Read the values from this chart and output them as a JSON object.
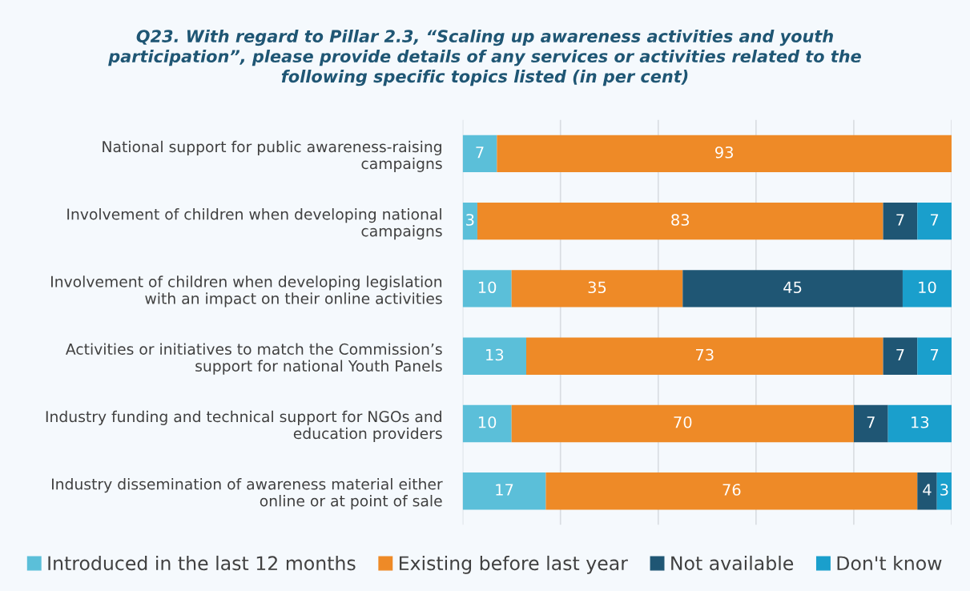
{
  "chart_data": {
    "type": "bar",
    "orientation": "horizontal",
    "stacked": true,
    "title": "Q23. With regard to Pillar 2.3, “Scaling up awareness activities and youth\nparticipation”, please provide details of any services or activities related to the\nfollowing specific topics listed (in per cent)",
    "categories": [
      "National support for public awareness-raising\ncampaigns",
      "Involvement of children when developing national\ncampaigns",
      "Involvement of children when developing legislation\nwith an impact on their online activities",
      "Activities or initiatives to match the Commission’s\nsupport for national Youth Panels",
      "Industry funding and technical support for NGOs and\neducation providers",
      "Industry dissemination of awareness material either\nonline or at point of sale"
    ],
    "series": [
      {
        "name": "Introduced in the last 12 months",
        "color": "#5bbfd9",
        "values": [
          7,
          3,
          10,
          13,
          10,
          17
        ]
      },
      {
        "name": "Existing before last year",
        "color": "#ee8a27",
        "values": [
          93,
          83,
          35,
          73,
          70,
          76
        ]
      },
      {
        "name": "Not available",
        "color": "#1f5674",
        "values": [
          null,
          7,
          45,
          7,
          7,
          4
        ]
      },
      {
        "name": "Don't know",
        "color": "#1a9fcc",
        "values": [
          null,
          7,
          10,
          7,
          13,
          3
        ]
      }
    ],
    "xlim": [
      0,
      100
    ],
    "xticks": [
      {
        "value": 0,
        "label": null
      },
      {
        "value": 20,
        "label": null
      },
      {
        "value": 40,
        "label": null
      },
      {
        "value": 60,
        "label": null
      },
      {
        "value": 80,
        "label": null
      },
      {
        "value": 100,
        "label": null
      }
    ],
    "tick_labels": "y",
    "grid": "x",
    "legend": "bottom",
    "data_labels": true
  }
}
